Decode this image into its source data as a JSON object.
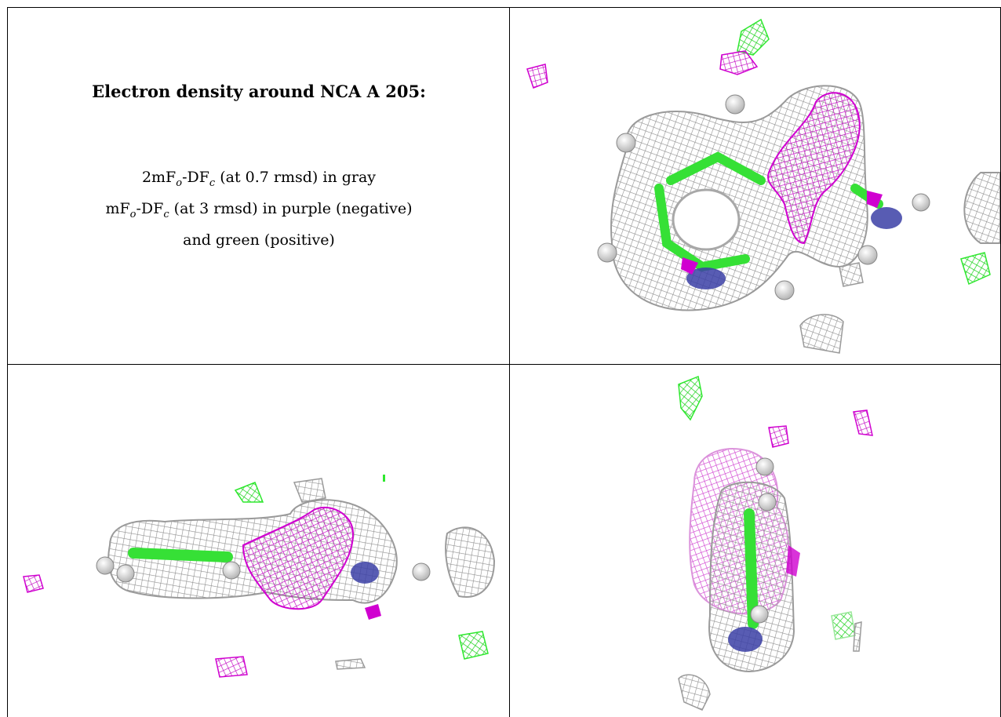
{
  "title": "Electron density around NCA A 205:",
  "legend": {
    "line1": {
      "a": "2mF",
      "sub1": "o",
      "b": "-DF",
      "sub2": "c",
      "rest": " (at 0.7 rmsd) in gray"
    },
    "line2": {
      "a": "mF",
      "sub1": "o",
      "b": "-DF",
      "sub2": "c",
      "rest": " (at 3 rmsd) in purple (negative)"
    },
    "line3": "and green (positive)"
  },
  "colors": {
    "mesh_gray": "#9a9a9a",
    "negative": "#d400d4",
    "positive": "#2ee82e",
    "nitrogen": "#3b3fa6",
    "hydrogen": "#e8e8e8",
    "grid_lines": "#000000"
  }
}
